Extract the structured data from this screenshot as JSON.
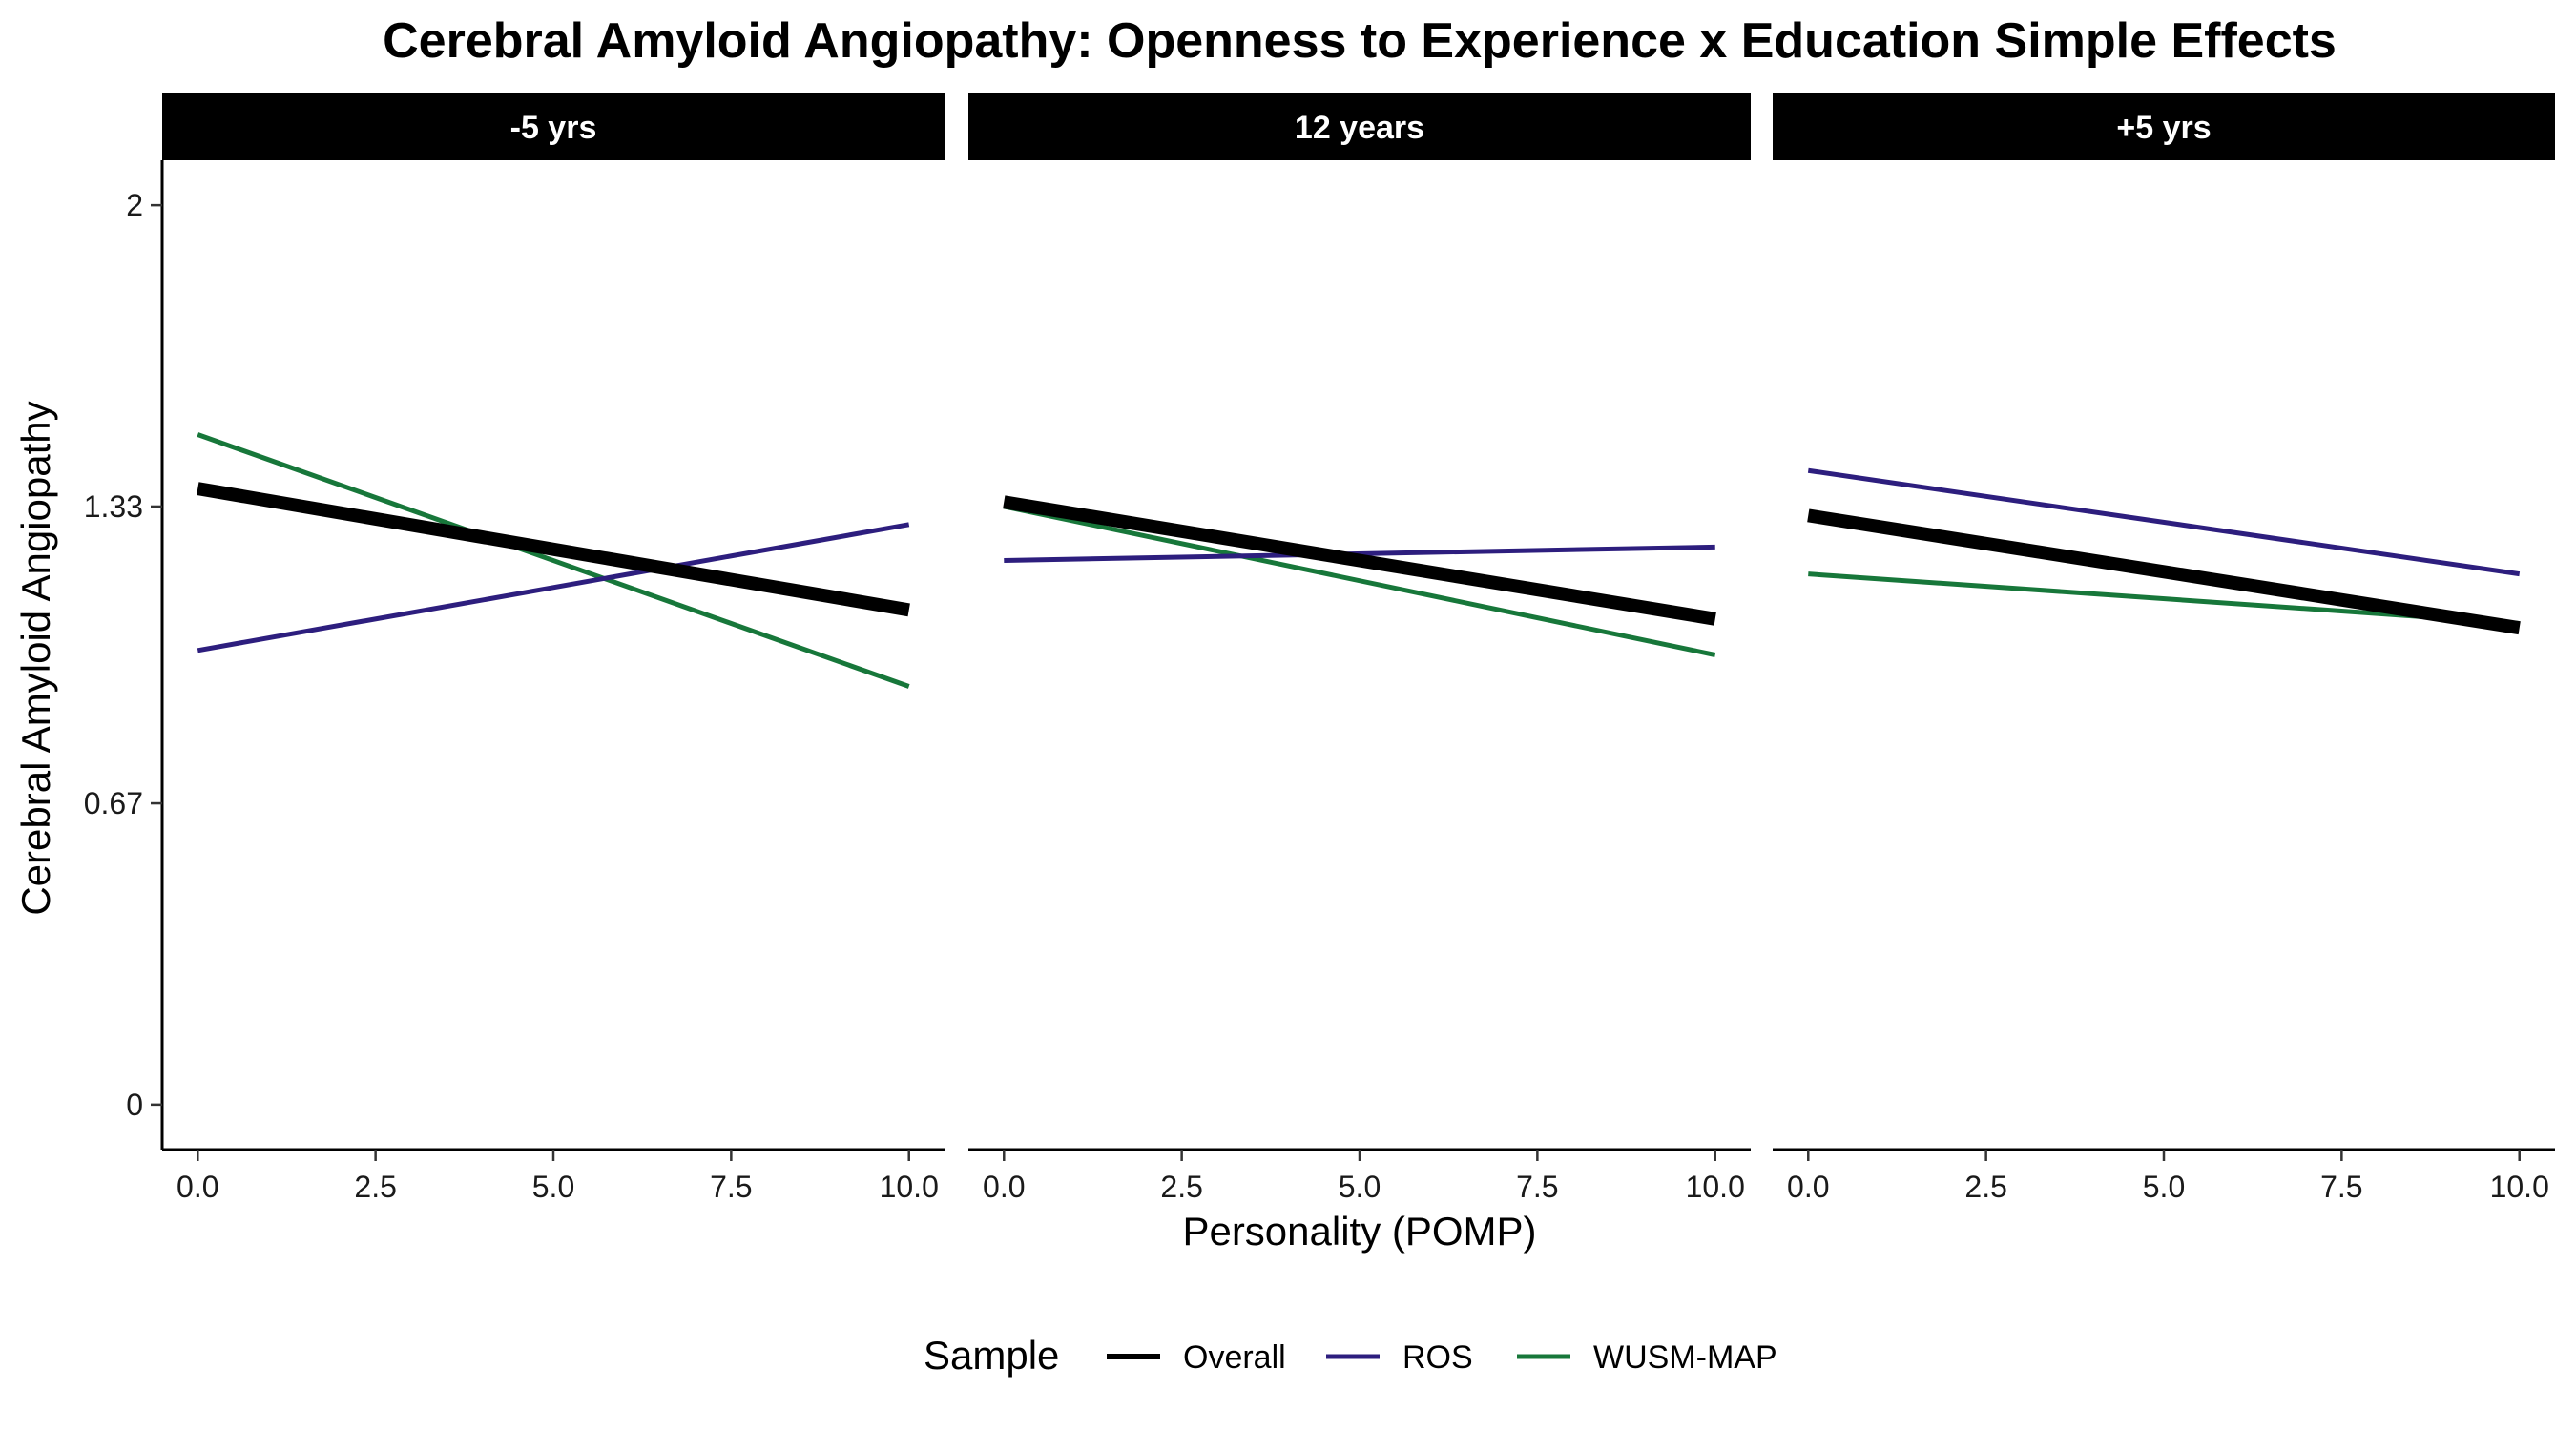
{
  "chart_data": {
    "type": "line",
    "title": "Cerebral Amyloid Angiopathy: Openness to Experience x Education Simple Effects",
    "xlabel": "Personality (POMP)",
    "ylabel": "Cerebral Amyloid Angiopathy",
    "xlim": [
      -0.5,
      10.5
    ],
    "ylim": [
      -0.1,
      2.1
    ],
    "x_ticks": [
      0,
      2.5,
      5,
      7.5,
      10
    ],
    "x_tick_labels": [
      "0.0",
      "2.5",
      "5.0",
      "7.5",
      "10.0"
    ],
    "y_ticks": [
      0,
      0.67,
      1.33,
      2
    ],
    "y_tick_labels": [
      "0",
      "0.67",
      "1.33",
      "2"
    ],
    "grid": false,
    "legend": {
      "title": "Sample",
      "position": "bottom",
      "entries": [
        "Overall",
        "ROS",
        "WUSM-MAP"
      ]
    },
    "series_colors": {
      "Overall": "#000000",
      "ROS": "#2d1e7e",
      "WUSM-MAP": "#17773a"
    },
    "panels": [
      {
        "label": "-5 yrs",
        "series": [
          {
            "name": "Overall",
            "x": [
              0,
              10
            ],
            "y": [
              1.37,
              1.1
            ]
          },
          {
            "name": "ROS",
            "x": [
              0,
              10
            ],
            "y": [
              1.01,
              1.29
            ]
          },
          {
            "name": "WUSM-MAP",
            "x": [
              0,
              10
            ],
            "y": [
              1.49,
              0.93
            ]
          }
        ]
      },
      {
        "label": "12 years",
        "series": [
          {
            "name": "Overall",
            "x": [
              0,
              10
            ],
            "y": [
              1.34,
              1.08
            ]
          },
          {
            "name": "ROS",
            "x": [
              0,
              10
            ],
            "y": [
              1.21,
              1.24
            ]
          },
          {
            "name": "WUSM-MAP",
            "x": [
              0,
              10
            ],
            "y": [
              1.33,
              1.0
            ]
          }
        ]
      },
      {
        "label": "+5 yrs",
        "series": [
          {
            "name": "Overall",
            "x": [
              0,
              10
            ],
            "y": [
              1.31,
              1.06
            ]
          },
          {
            "name": "ROS",
            "x": [
              0,
              10
            ],
            "y": [
              1.41,
              1.18
            ]
          },
          {
            "name": "WUSM-MAP",
            "x": [
              0,
              10
            ],
            "y": [
              1.18,
              1.07
            ]
          }
        ]
      }
    ]
  }
}
